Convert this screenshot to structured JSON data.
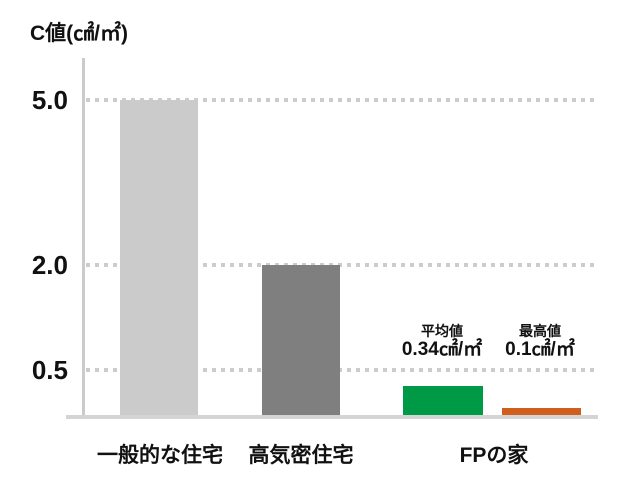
{
  "chart": {
    "title": "C値(㎠/㎡)",
    "y_ticks": [
      "5.0",
      "2.0",
      "0.5"
    ],
    "x_labels": [
      "一般的な住宅",
      "高気密住宅",
      "FPの家"
    ],
    "annotations": {
      "average": {
        "label": "平均値",
        "value": "0.34㎠/㎡"
      },
      "best": {
        "label": "最高値",
        "value": "0.1㎠/㎡"
      }
    },
    "colors": {
      "general_house_bar": "#cbcbcb",
      "airtight_house_bar": "#7f7f7f",
      "fp_average_bar": "#009946",
      "fp_best_bar": "#d05e1c",
      "axis_line": "#cbcbcb",
      "gridline_dots": "#cccccc",
      "text": "#111111"
    }
  },
  "chart_data": {
    "type": "bar",
    "title": "C値(㎠/㎡)",
    "ylabel": "C値(㎠/㎡)",
    "xlabel": "",
    "categories": [
      "一般的な住宅",
      "高気密住宅",
      "FPの家 平均値",
      "FPの家 最高値"
    ],
    "values": [
      5.0,
      2.0,
      0.34,
      0.1
    ],
    "bar_colors": [
      "#cbcbcb",
      "#7f7f7f",
      "#009946",
      "#d05e1c"
    ],
    "ytick_labels": [
      "5.0",
      "2.0",
      "0.5"
    ],
    "grid": "horizontal dotted lines at each y tick",
    "legend": "none",
    "yscale_display": "non-linear (stylized spacing between ticks)",
    "annotations": [
      {
        "target": "FPの家 平均値",
        "label": "平均値",
        "value_text": "0.34㎠/㎡"
      },
      {
        "target": "FPの家 最高値",
        "label": "最高値",
        "value_text": "0.1㎠/㎡"
      }
    ]
  }
}
